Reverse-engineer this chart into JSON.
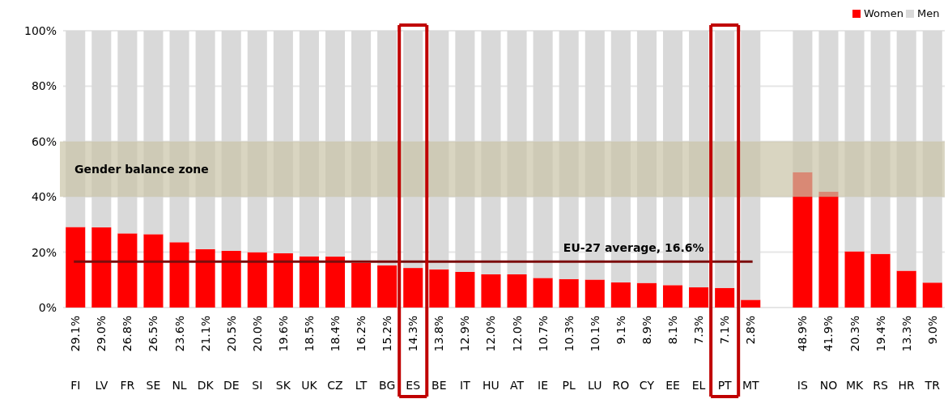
{
  "chart_data": {
    "type": "bar",
    "stacked": true,
    "categories": [
      "FI",
      "LV",
      "FR",
      "SE",
      "NL",
      "DK",
      "DE",
      "SI",
      "SK",
      "UK",
      "CZ",
      "LT",
      "BG",
      "ES",
      "BE",
      "IT",
      "HU",
      "AT",
      "IE",
      "PL",
      "LU",
      "RO",
      "CY",
      "EE",
      "EL",
      "PT",
      "MT",
      null,
      "IS",
      "NO",
      "MK",
      "RS",
      "HR",
      "TR"
    ],
    "series": [
      {
        "name": "Women",
        "color": "#ff0000",
        "values": [
          29.1,
          29.0,
          26.8,
          26.5,
          23.6,
          21.1,
          20.5,
          20.0,
          19.6,
          18.5,
          18.4,
          16.2,
          15.2,
          14.3,
          13.8,
          12.9,
          12.0,
          12.0,
          10.7,
          10.3,
          10.1,
          9.1,
          8.9,
          8.1,
          7.3,
          7.1,
          2.8,
          null,
          48.9,
          41.9,
          20.3,
          19.4,
          13.3,
          9.0
        ],
        "value_labels": [
          "29.1%",
          "29.0%",
          "26.8%",
          "26.5%",
          "23.6%",
          "21.1%",
          "20.5%",
          "20.0%",
          "19.6%",
          "18.5%",
          "18.4%",
          "16.2%",
          "15.2%",
          "14.3%",
          "13.8%",
          "12.9%",
          "12.0%",
          "12.0%",
          "10.7%",
          "10.3%",
          "10.1%",
          "9.1%",
          "8.9%",
          "8.1%",
          "7.3%",
          "7.1%",
          "2.8%",
          null,
          "48.9%",
          "41.9%",
          "20.3%",
          "19.4%",
          "13.3%",
          "9.0%"
        ]
      },
      {
        "name": "Men",
        "color": "#d9d9d9",
        "values": [
          70.9,
          71.0,
          73.2,
          73.5,
          76.4,
          78.9,
          79.5,
          80.0,
          80.4,
          81.5,
          81.6,
          83.8,
          84.8,
          85.7,
          86.2,
          87.1,
          88.0,
          88.0,
          89.3,
          89.7,
          89.9,
          90.9,
          91.1,
          91.9,
          92.7,
          92.9,
          97.2,
          null,
          51.1,
          58.1,
          79.7,
          80.6,
          86.7,
          91.0
        ]
      }
    ],
    "ylim": [
      0,
      100
    ],
    "yticks": [
      {
        "value": 0,
        "label": "0%"
      },
      {
        "value": 20,
        "label": "20%"
      },
      {
        "value": 40,
        "label": "40%"
      },
      {
        "value": 60,
        "label": "60%"
      },
      {
        "value": 80,
        "label": "80%"
      },
      {
        "value": 100,
        "label": "100%"
      }
    ],
    "grid": "y",
    "legend": "top right",
    "bands": [
      {
        "axis": "y",
        "from": 40,
        "to": 60,
        "label": "Gender balance zone",
        "color": "#c9c3a6"
      }
    ],
    "ref_lines": [
      {
        "axis": "y",
        "value": 16.6,
        "label": "EU-27 average, 16.6%",
        "color": "#7b0c0c"
      }
    ]
  }
}
